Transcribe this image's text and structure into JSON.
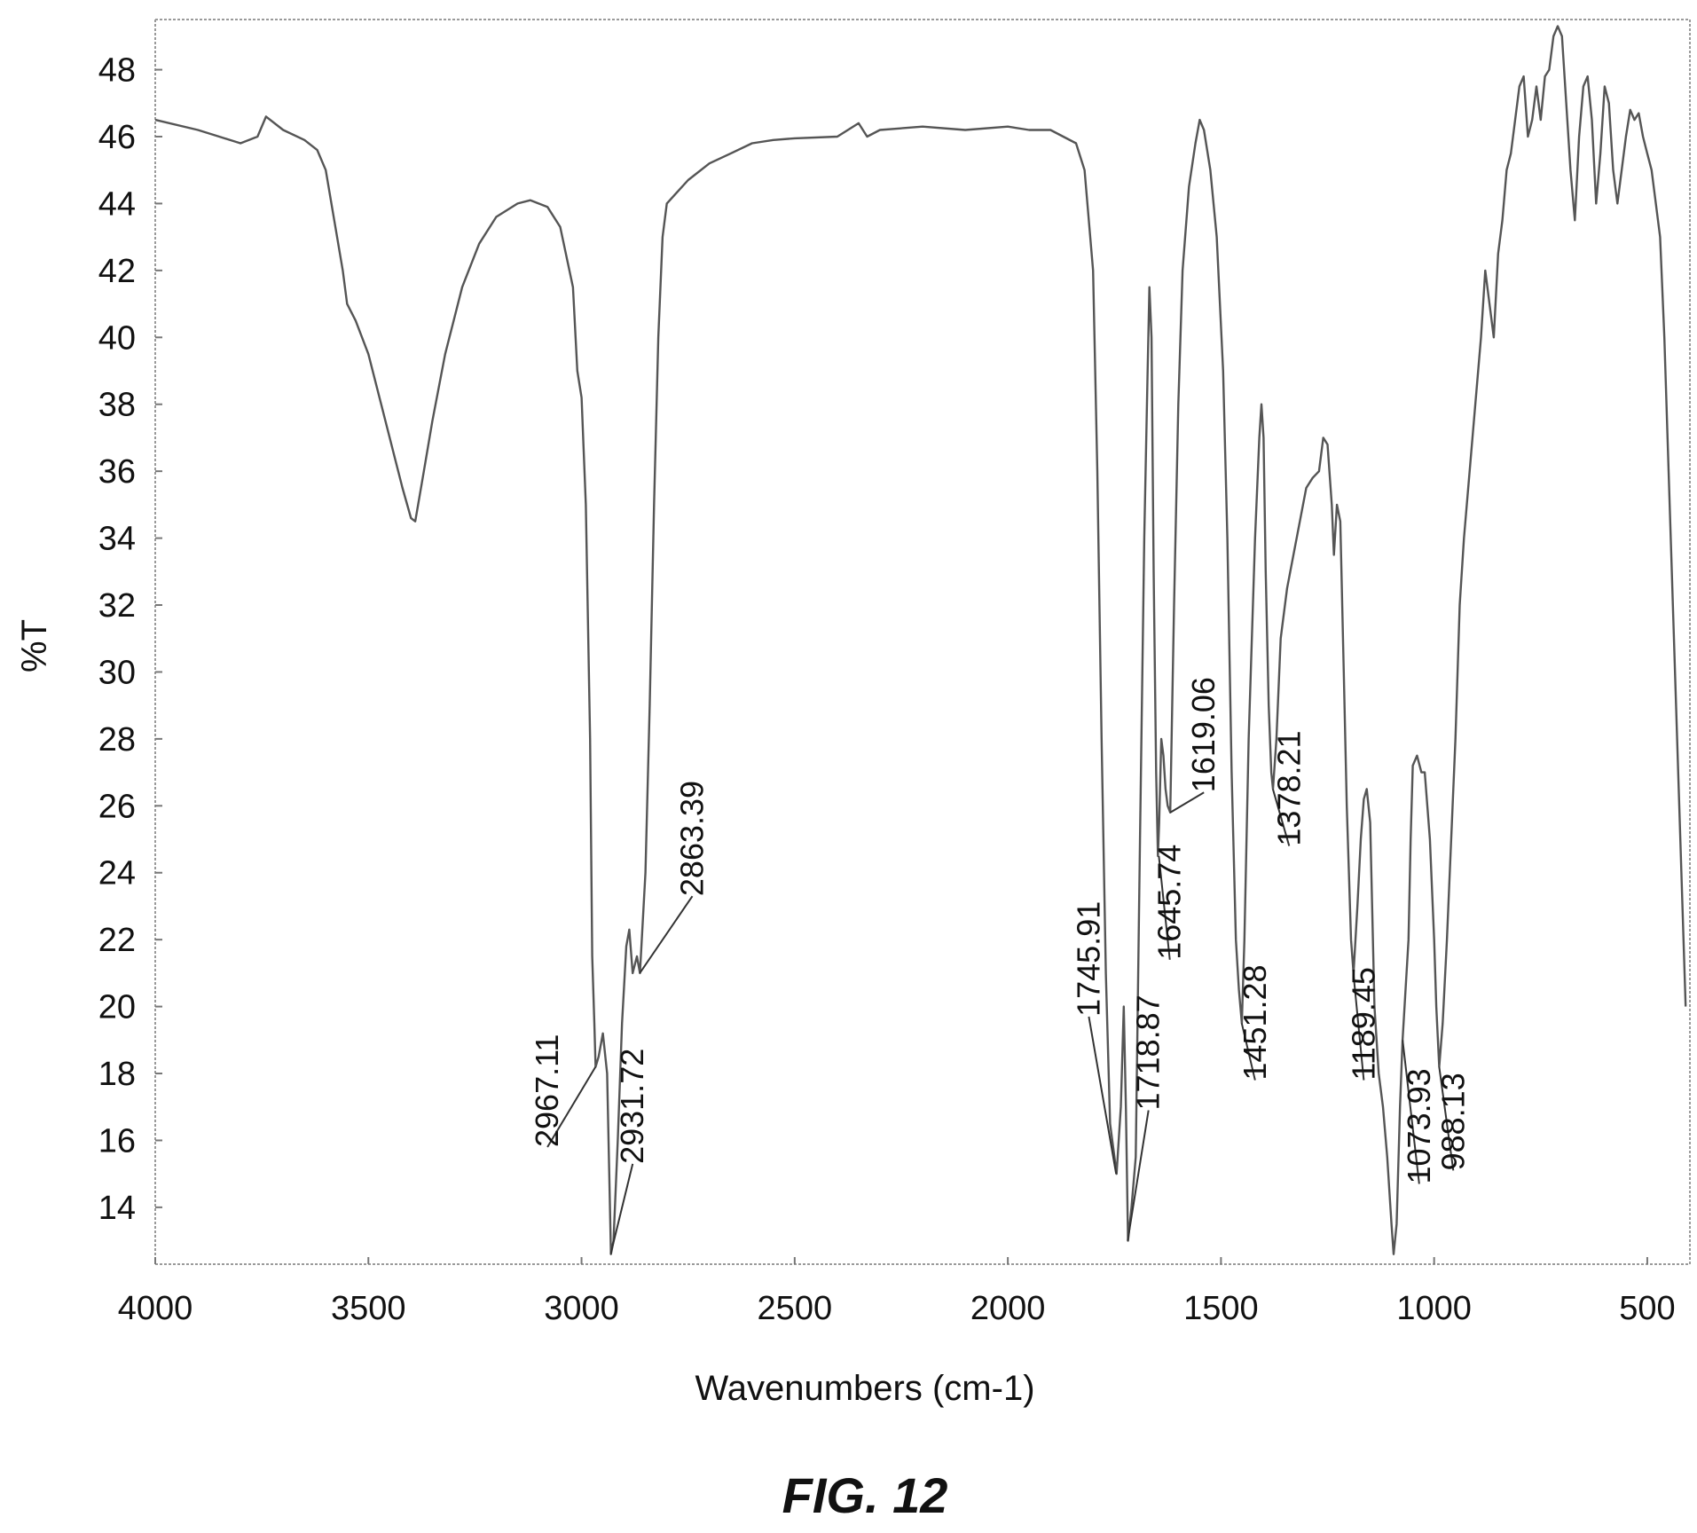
{
  "figure": {
    "caption": "FIG. 12"
  },
  "chart_data": {
    "type": "line",
    "title": "",
    "xlabel": "Wavenumbers (cm-1)",
    "ylabel": "%T",
    "xlim": [
      4000,
      400
    ],
    "ylim": [
      12.3,
      49.5
    ],
    "x_reversed": true,
    "grid": false,
    "legend": "none",
    "x_ticks": [
      4000,
      3500,
      3000,
      2500,
      2000,
      1500,
      1000,
      500
    ],
    "x_tick_labels": [
      "4000",
      "3500",
      "3000",
      "2500",
      "2000",
      "1500",
      "1000",
      "500"
    ],
    "y_ticks": [
      14,
      16,
      18,
      20,
      22,
      24,
      26,
      28,
      30,
      32,
      34,
      36,
      38,
      40,
      42,
      44,
      46,
      48
    ],
    "y_tick_labels": [
      "14",
      "16",
      "18",
      "20",
      "22",
      "24",
      "26",
      "28",
      "30",
      "32",
      "34",
      "36",
      "38",
      "40",
      "42",
      "44",
      "46",
      "48"
    ],
    "series": [
      {
        "line_color": "#555555",
        "points": [
          [
            4000,
            46.5
          ],
          [
            3900,
            46.2
          ],
          [
            3850,
            46.0
          ],
          [
            3800,
            45.8
          ],
          [
            3760,
            46.0
          ],
          [
            3740,
            46.6
          ],
          [
            3700,
            46.2
          ],
          [
            3650,
            45.9
          ],
          [
            3620,
            45.6
          ],
          [
            3600,
            45.0
          ],
          [
            3580,
            43.5
          ],
          [
            3560,
            42.0
          ],
          [
            3550,
            41.0
          ],
          [
            3530,
            40.5
          ],
          [
            3500,
            39.5
          ],
          [
            3470,
            38.0
          ],
          [
            3440,
            36.5
          ],
          [
            3420,
            35.5
          ],
          [
            3400,
            34.6
          ],
          [
            3390,
            34.5
          ],
          [
            3370,
            36.0
          ],
          [
            3350,
            37.5
          ],
          [
            3320,
            39.5
          ],
          [
            3280,
            41.5
          ],
          [
            3240,
            42.8
          ],
          [
            3200,
            43.6
          ],
          [
            3150,
            44.0
          ],
          [
            3120,
            44.1
          ],
          [
            3080,
            43.9
          ],
          [
            3050,
            43.3
          ],
          [
            3020,
            41.5
          ],
          [
            3010,
            39.0
          ],
          [
            3000,
            38.2
          ],
          [
            2990,
            35.0
          ],
          [
            2980,
            28.0
          ],
          [
            2975,
            21.5
          ],
          [
            2970,
            19.5
          ],
          [
            2967,
            18.2
          ],
          [
            2960,
            18.5
          ],
          [
            2950,
            19.2
          ],
          [
            2940,
            18.0
          ],
          [
            2935,
            15.0
          ],
          [
            2931,
            12.6
          ],
          [
            2925,
            13.0
          ],
          [
            2915,
            16.0
          ],
          [
            2905,
            19.5
          ],
          [
            2895,
            21.8
          ],
          [
            2888,
            22.3
          ],
          [
            2880,
            21.0
          ],
          [
            2870,
            21.5
          ],
          [
            2863,
            21.0
          ],
          [
            2850,
            24.0
          ],
          [
            2840,
            29.0
          ],
          [
            2830,
            35.0
          ],
          [
            2820,
            40.0
          ],
          [
            2810,
            43.0
          ],
          [
            2800,
            44.0
          ],
          [
            2750,
            44.7
          ],
          [
            2700,
            45.2
          ],
          [
            2650,
            45.5
          ],
          [
            2600,
            45.8
          ],
          [
            2550,
            45.9
          ],
          [
            2500,
            45.95
          ],
          [
            2400,
            46.0
          ],
          [
            2350,
            46.4
          ],
          [
            2330,
            46.0
          ],
          [
            2300,
            46.2
          ],
          [
            2200,
            46.3
          ],
          [
            2100,
            46.2
          ],
          [
            2000,
            46.3
          ],
          [
            1950,
            46.2
          ],
          [
            1900,
            46.2
          ],
          [
            1870,
            46.0
          ],
          [
            1840,
            45.8
          ],
          [
            1820,
            45.0
          ],
          [
            1800,
            42.0
          ],
          [
            1790,
            36.0
          ],
          [
            1780,
            28.0
          ],
          [
            1770,
            21.0
          ],
          [
            1760,
            16.5
          ],
          [
            1750,
            15.5
          ],
          [
            1745,
            15.0
          ],
          [
            1735,
            17.0
          ],
          [
            1728,
            20.0
          ],
          [
            1723,
            17.0
          ],
          [
            1718,
            13.0
          ],
          [
            1710,
            14.0
          ],
          [
            1700,
            15.5
          ],
          [
            1690,
            25.0
          ],
          [
            1680,
            34.0
          ],
          [
            1672,
            39.0
          ],
          [
            1668,
            41.5
          ],
          [
            1663,
            40.0
          ],
          [
            1658,
            33.0
          ],
          [
            1652,
            27.0
          ],
          [
            1648,
            24.5
          ],
          [
            1645,
            25.5
          ],
          [
            1640,
            28.0
          ],
          [
            1635,
            27.5
          ],
          [
            1630,
            26.5
          ],
          [
            1625,
            26.0
          ],
          [
            1619,
            25.8
          ],
          [
            1610,
            32.0
          ],
          [
            1600,
            38.0
          ],
          [
            1590,
            42.0
          ],
          [
            1575,
            44.5
          ],
          [
            1560,
            45.8
          ],
          [
            1550,
            46.5
          ],
          [
            1540,
            46.2
          ],
          [
            1525,
            45.0
          ],
          [
            1510,
            43.0
          ],
          [
            1495,
            39.0
          ],
          [
            1485,
            34.0
          ],
          [
            1475,
            27.0
          ],
          [
            1465,
            22.0
          ],
          [
            1458,
            20.5
          ],
          [
            1451,
            19.5
          ],
          [
            1445,
            22.0
          ],
          [
            1435,
            28.0
          ],
          [
            1420,
            34.0
          ],
          [
            1410,
            37.0
          ],
          [
            1405,
            38.0
          ],
          [
            1400,
            37.0
          ],
          [
            1395,
            33.0
          ],
          [
            1388,
            29.0
          ],
          [
            1382,
            27.0
          ],
          [
            1378,
            26.5
          ],
          [
            1370,
            28.0
          ],
          [
            1360,
            31.0
          ],
          [
            1345,
            32.5
          ],
          [
            1330,
            33.5
          ],
          [
            1315,
            34.5
          ],
          [
            1300,
            35.5
          ],
          [
            1285,
            35.8
          ],
          [
            1270,
            36.0
          ],
          [
            1260,
            37.0
          ],
          [
            1250,
            36.8
          ],
          [
            1240,
            35.0
          ],
          [
            1235,
            33.5
          ],
          [
            1228,
            35.0
          ],
          [
            1220,
            34.5
          ],
          [
            1212,
            30.0
          ],
          [
            1205,
            26.0
          ],
          [
            1200,
            24.0
          ],
          [
            1195,
            22.0
          ],
          [
            1189,
            21.0
          ],
          [
            1180,
            23.0
          ],
          [
            1172,
            25.0
          ],
          [
            1165,
            26.2
          ],
          [
            1158,
            26.5
          ],
          [
            1150,
            25.5
          ],
          [
            1140,
            20.0
          ],
          [
            1130,
            18.0
          ],
          [
            1120,
            17.0
          ],
          [
            1110,
            15.5
          ],
          [
            1100,
            13.5
          ],
          [
            1095,
            12.6
          ],
          [
            1088,
            13.5
          ],
          [
            1080,
            17.0
          ],
          [
            1073.93,
            19.0
          ],
          [
            1068,
            20.3
          ],
          [
            1060,
            22.0
          ],
          [
            1055,
            25.0
          ],
          [
            1050,
            27.2
          ],
          [
            1040,
            27.5
          ],
          [
            1030,
            27.0
          ],
          [
            1022,
            27.0
          ],
          [
            1010,
            25.0
          ],
          [
            1000,
            22.0
          ],
          [
            995,
            20.0
          ],
          [
            988,
            18.2
          ],
          [
            980,
            19.5
          ],
          [
            970,
            22.0
          ],
          [
            960,
            25.0
          ],
          [
            950,
            28.0
          ],
          [
            940,
            32.0
          ],
          [
            930,
            34.0
          ],
          [
            920,
            35.5
          ],
          [
            910,
            37.0
          ],
          [
            900,
            38.5
          ],
          [
            890,
            40.0
          ],
          [
            880,
            42.0
          ],
          [
            870,
            41.0
          ],
          [
            860,
            40.0
          ],
          [
            850,
            42.5
          ],
          [
            840,
            43.5
          ],
          [
            830,
            45.0
          ],
          [
            820,
            45.5
          ],
          [
            810,
            46.5
          ],
          [
            800,
            47.5
          ],
          [
            790,
            47.8
          ],
          [
            780,
            46.0
          ],
          [
            770,
            46.5
          ],
          [
            760,
            47.5
          ],
          [
            750,
            46.5
          ],
          [
            740,
            47.8
          ],
          [
            730,
            48.0
          ],
          [
            720,
            49.0
          ],
          [
            710,
            49.3
          ],
          [
            700,
            49.0
          ],
          [
            690,
            47.0
          ],
          [
            680,
            45.0
          ],
          [
            670,
            43.5
          ],
          [
            660,
            46.0
          ],
          [
            650,
            47.5
          ],
          [
            640,
            47.8
          ],
          [
            630,
            46.5
          ],
          [
            620,
            44.0
          ],
          [
            610,
            45.5
          ],
          [
            600,
            47.5
          ],
          [
            590,
            47.0
          ],
          [
            580,
            45.0
          ],
          [
            570,
            44.0
          ],
          [
            560,
            45.0
          ],
          [
            550,
            46.0
          ],
          [
            540,
            46.8
          ],
          [
            530,
            46.5
          ],
          [
            520,
            46.7
          ],
          [
            510,
            46.0
          ],
          [
            500,
            45.5
          ],
          [
            490,
            45.0
          ],
          [
            480,
            44.0
          ],
          [
            470,
            43.0
          ],
          [
            460,
            40.0
          ],
          [
            450,
            36.0
          ],
          [
            440,
            32.0
          ],
          [
            430,
            28.0
          ],
          [
            420,
            24.0
          ],
          [
            410,
            20.0
          ]
        ]
      }
    ],
    "annotations": [
      {
        "label": "2967.11",
        "x": 2967.11,
        "y": 18.2,
        "text_x": 3080,
        "text_y": 15.8
      },
      {
        "label": "2931.72",
        "x": 2931.72,
        "y": 12.6,
        "text_x": 2880,
        "text_y": 15.3
      },
      {
        "label": "2863.39",
        "x": 2863.39,
        "y": 21.0,
        "text_x": 2740,
        "text_y": 23.3
      },
      {
        "label": "1745.91",
        "x": 1745.91,
        "y": 15.0,
        "text_x": 1810,
        "text_y": 19.7
      },
      {
        "label": "1718.87",
        "x": 1718.87,
        "y": 13.0,
        "text_x": 1670,
        "text_y": 16.9
      },
      {
        "label": "1645.74",
        "x": 1645.74,
        "y": 24.5,
        "text_x": 1620,
        "text_y": 21.4
      },
      {
        "label": "1619.06",
        "x": 1619.06,
        "y": 25.8,
        "text_x": 1540,
        "text_y": 26.4
      },
      {
        "label": "1451.28",
        "x": 1451.28,
        "y": 19.5,
        "text_x": 1420,
        "text_y": 17.8
      },
      {
        "label": "1378.21",
        "x": 1378.21,
        "y": 26.5,
        "text_x": 1340,
        "text_y": 24.8
      },
      {
        "label": "1189.45",
        "x": 1189.45,
        "y": 21.0,
        "text_x": 1165,
        "text_y": 17.8
      },
      {
        "label": "1073.93",
        "x": 1073.93,
        "y": 19.0,
        "text_x": 1035,
        "text_y": 14.7
      },
      {
        "label": "988.13",
        "x": 988.13,
        "y": 18.2,
        "text_x": 955,
        "text_y": 15.1
      }
    ]
  }
}
